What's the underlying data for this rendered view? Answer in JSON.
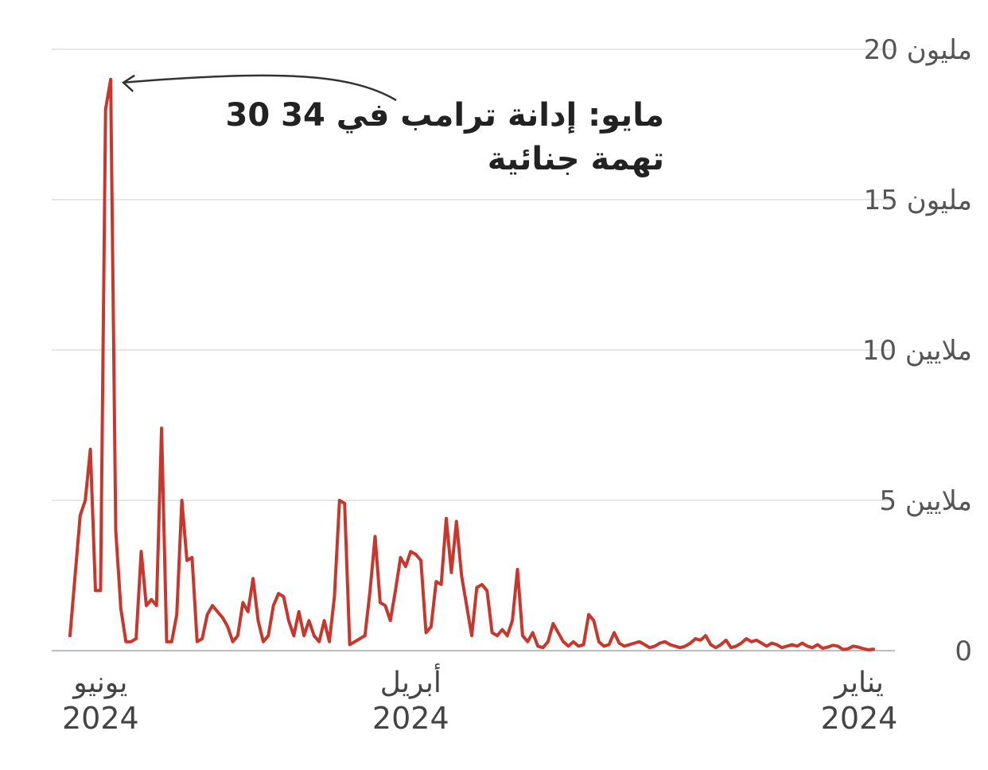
{
  "chart_data": {
    "type": "line",
    "title": "",
    "xlabel": "",
    "ylabel": "",
    "x_direction": "right-to-left",
    "ylim": [
      0,
      20000000
    ],
    "grid": true,
    "y_ticks": [
      {
        "value": 0,
        "label": "0"
      },
      {
        "value": 5000000,
        "label": "5 ملايين"
      },
      {
        "value": 10000000,
        "label": "10 ملايين"
      },
      {
        "value": 15000000,
        "label": "15 مليون"
      },
      {
        "value": 20000000,
        "label": "20 مليون"
      }
    ],
    "x_ticks": [
      {
        "date": "2024-01-01",
        "month": "يناير",
        "year": "2024"
      },
      {
        "date": "2024-04-01",
        "month": "أبريل",
        "year": "2024"
      },
      {
        "date": "2024-06-01",
        "month": "يونيو",
        "year": "2024"
      }
    ],
    "xlim": [
      "2024-01-01",
      "2024-06-07"
    ],
    "annotation": {
      "date": "2024-05-30",
      "value": 19000000,
      "line1": "30 مايو: إدانة ترامب في 34",
      "line2": "تهمة جنائية"
    },
    "series": [
      {
        "values": [
          [
            "2024-01-01",
            50000
          ],
          [
            "2024-01-02",
            30000
          ],
          [
            "2024-01-03",
            70000
          ],
          [
            "2024-01-04",
            120000
          ],
          [
            "2024-01-05",
            150000
          ],
          [
            "2024-01-06",
            60000
          ],
          [
            "2024-01-07",
            40000
          ],
          [
            "2024-01-08",
            150000
          ],
          [
            "2024-01-09",
            180000
          ],
          [
            "2024-01-10",
            120000
          ],
          [
            "2024-01-11",
            80000
          ],
          [
            "2024-01-12",
            200000
          ],
          [
            "2024-01-13",
            100000
          ],
          [
            "2024-01-14",
            150000
          ],
          [
            "2024-01-15",
            250000
          ],
          [
            "2024-01-16",
            150000
          ],
          [
            "2024-01-17",
            200000
          ],
          [
            "2024-01-18",
            150000
          ],
          [
            "2024-01-19",
            100000
          ],
          [
            "2024-01-20",
            200000
          ],
          [
            "2024-01-21",
            250000
          ],
          [
            "2024-01-22",
            150000
          ],
          [
            "2024-01-23",
            250000
          ],
          [
            "2024-01-24",
            350000
          ],
          [
            "2024-01-25",
            300000
          ],
          [
            "2024-01-26",
            400000
          ],
          [
            "2024-01-27",
            250000
          ],
          [
            "2024-01-28",
            150000
          ],
          [
            "2024-01-29",
            100000
          ],
          [
            "2024-01-30",
            350000
          ],
          [
            "2024-01-31",
            200000
          ],
          [
            "2024-02-01",
            100000
          ],
          [
            "2024-02-02",
            200000
          ],
          [
            "2024-02-03",
            500000
          ],
          [
            "2024-02-04",
            350000
          ],
          [
            "2024-02-05",
            400000
          ],
          [
            "2024-02-06",
            250000
          ],
          [
            "2024-02-07",
            150000
          ],
          [
            "2024-02-08",
            100000
          ],
          [
            "2024-02-09",
            150000
          ],
          [
            "2024-02-10",
            200000
          ],
          [
            "2024-02-11",
            300000
          ],
          [
            "2024-02-12",
            250000
          ],
          [
            "2024-02-13",
            150000
          ],
          [
            "2024-02-14",
            100000
          ],
          [
            "2024-02-15",
            200000
          ],
          [
            "2024-02-16",
            300000
          ],
          [
            "2024-02-17",
            250000
          ],
          [
            "2024-02-18",
            200000
          ],
          [
            "2024-02-19",
            150000
          ],
          [
            "2024-02-20",
            250000
          ],
          [
            "2024-02-21",
            600000
          ],
          [
            "2024-02-22",
            200000
          ],
          [
            "2024-02-23",
            150000
          ],
          [
            "2024-02-24",
            300000
          ],
          [
            "2024-02-25",
            1000000
          ],
          [
            "2024-02-26",
            1200000
          ],
          [
            "2024-02-27",
            200000
          ],
          [
            "2024-02-28",
            150000
          ],
          [
            "2024-02-29",
            300000
          ],
          [
            "2024-03-01",
            150000
          ],
          [
            "2024-03-02",
            300000
          ],
          [
            "2024-03-03",
            600000
          ],
          [
            "2024-03-04",
            900000
          ],
          [
            "2024-03-05",
            300000
          ],
          [
            "2024-03-06",
            100000
          ],
          [
            "2024-03-07",
            150000
          ],
          [
            "2024-03-08",
            600000
          ],
          [
            "2024-03-09",
            300000
          ],
          [
            "2024-03-10",
            500000
          ],
          [
            "2024-03-11",
            2700000
          ],
          [
            "2024-03-12",
            1000000
          ],
          [
            "2024-03-13",
            500000
          ],
          [
            "2024-03-14",
            700000
          ],
          [
            "2024-03-15",
            500000
          ],
          [
            "2024-03-16",
            600000
          ],
          [
            "2024-03-17",
            2000000
          ],
          [
            "2024-03-18",
            2200000
          ],
          [
            "2024-03-19",
            2100000
          ],
          [
            "2024-03-20",
            500000
          ],
          [
            "2024-03-21",
            1500000
          ],
          [
            "2024-03-22",
            2500000
          ],
          [
            "2024-03-23",
            4300000
          ],
          [
            "2024-03-24",
            2600000
          ],
          [
            "2024-03-25",
            4400000
          ],
          [
            "2024-03-26",
            2200000
          ],
          [
            "2024-03-27",
            2300000
          ],
          [
            "2024-03-28",
            800000
          ],
          [
            "2024-03-29",
            600000
          ],
          [
            "2024-03-30",
            3000000
          ],
          [
            "2024-03-31",
            3200000
          ],
          [
            "2024-04-01",
            3300000
          ],
          [
            "2024-04-02",
            2800000
          ],
          [
            "2024-04-03",
            3100000
          ],
          [
            "2024-04-04",
            2000000
          ],
          [
            "2024-04-05",
            1000000
          ],
          [
            "2024-04-06",
            1500000
          ],
          [
            "2024-04-07",
            1600000
          ],
          [
            "2024-04-08",
            3800000
          ],
          [
            "2024-04-09",
            2000000
          ],
          [
            "2024-04-10",
            500000
          ],
          [
            "2024-04-11",
            400000
          ],
          [
            "2024-04-12",
            300000
          ],
          [
            "2024-04-13",
            200000
          ],
          [
            "2024-04-14",
            4900000
          ],
          [
            "2024-04-15",
            5000000
          ],
          [
            "2024-04-16",
            1800000
          ],
          [
            "2024-04-17",
            300000
          ],
          [
            "2024-04-18",
            1000000
          ],
          [
            "2024-04-19",
            300000
          ],
          [
            "2024-04-20",
            500000
          ],
          [
            "2024-04-21",
            1000000
          ],
          [
            "2024-04-22",
            500000
          ],
          [
            "2024-04-23",
            1300000
          ],
          [
            "2024-04-24",
            500000
          ],
          [
            "2024-04-25",
            1000000
          ],
          [
            "2024-04-26",
            1800000
          ],
          [
            "2024-04-27",
            1900000
          ],
          [
            "2024-04-28",
            1500000
          ],
          [
            "2024-04-29",
            500000
          ],
          [
            "2024-04-30",
            300000
          ],
          [
            "2024-05-01",
            1000000
          ],
          [
            "2024-05-02",
            2400000
          ],
          [
            "2024-05-03",
            1300000
          ],
          [
            "2024-05-04",
            1600000
          ],
          [
            "2024-05-05",
            500000
          ],
          [
            "2024-05-06",
            300000
          ],
          [
            "2024-05-07",
            800000
          ],
          [
            "2024-05-08",
            1100000
          ],
          [
            "2024-05-09",
            1300000
          ],
          [
            "2024-05-10",
            1500000
          ],
          [
            "2024-05-11",
            1200000
          ],
          [
            "2024-05-12",
            400000
          ],
          [
            "2024-05-13",
            300000
          ],
          [
            "2024-05-14",
            3100000
          ],
          [
            "2024-05-15",
            3000000
          ],
          [
            "2024-05-16",
            5000000
          ],
          [
            "2024-05-17",
            1200000
          ],
          [
            "2024-05-18",
            300000
          ],
          [
            "2024-05-19",
            300000
          ],
          [
            "2024-05-20",
            7400000
          ],
          [
            "2024-05-21",
            1500000
          ],
          [
            "2024-05-22",
            1700000
          ],
          [
            "2024-05-23",
            1500000
          ],
          [
            "2024-05-24",
            3300000
          ],
          [
            "2024-05-25",
            400000
          ],
          [
            "2024-05-26",
            300000
          ],
          [
            "2024-05-27",
            300000
          ],
          [
            "2024-05-28",
            1400000
          ],
          [
            "2024-05-29",
            4000000
          ],
          [
            "2024-05-30",
            19000000
          ],
          [
            "2024-05-31",
            18000000
          ],
          [
            "2024-06-01",
            2000000
          ],
          [
            "2024-06-02",
            2000000
          ],
          [
            "2024-06-03",
            6700000
          ],
          [
            "2024-06-04",
            5000000
          ],
          [
            "2024-06-05",
            4500000
          ],
          [
            "2024-06-06",
            2500000
          ],
          [
            "2024-06-07",
            500000
          ]
        ]
      }
    ]
  }
}
